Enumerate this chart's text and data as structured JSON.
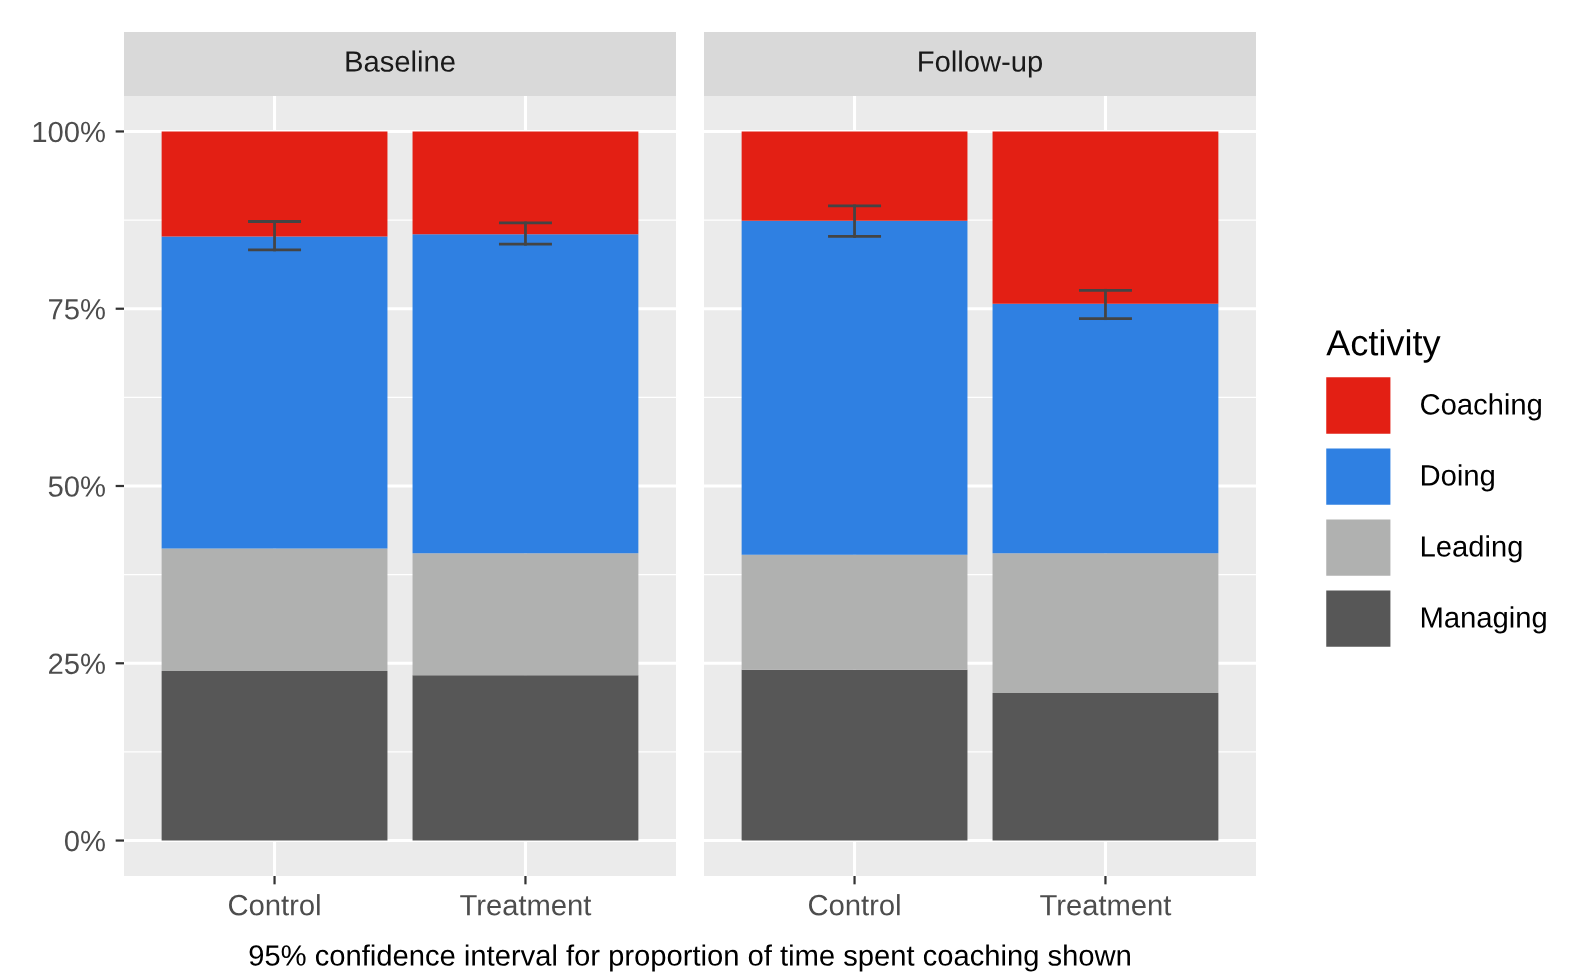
{
  "chart_data": [
    {
      "type": "bar",
      "title": "Baseline",
      "categories": [
        "Control",
        "Treatment"
      ],
      "stacked": true,
      "ylim": [
        -5,
        105
      ],
      "yticks": [
        {
          "value": 0,
          "label": "0%"
        },
        {
          "value": 12.5,
          "label": null
        },
        {
          "value": 25,
          "label": "25%"
        },
        {
          "value": 37.5,
          "label": null
        },
        {
          "value": 50,
          "label": "50%"
        },
        {
          "value": 62.5,
          "label": null
        },
        {
          "value": 75,
          "label": "75%"
        },
        {
          "value": 87.5,
          "label": null
        },
        {
          "value": 100,
          "label": "100%"
        }
      ],
      "grid": true,
      "legend": "right",
      "legend_title": "Activity",
      "annotations": [
        "95% confidence interval for proportion of time spent coaching shown"
      ],
      "series": [
        {
          "name": "Managing",
          "color": "#575757",
          "values": [
            23.9,
            23.3
          ]
        },
        {
          "name": "Leading",
          "color": "#b0b1b0",
          "values": [
            17.3,
            17.2
          ]
        },
        {
          "name": "Doing",
          "color": "#2f80e2",
          "values": [
            44.0,
            45.0
          ],
          "errors": [
            [
              83.3,
              87.3
            ],
            [
              84.1,
              87.1
            ]
          ]
        },
        {
          "name": "Coaching",
          "color": "#e31f14",
          "values": [
            14.8,
            14.5
          ]
        }
      ]
    },
    {
      "type": "bar",
      "title": "Follow-up",
      "categories": [
        "Control",
        "Treatment"
      ],
      "stacked": true,
      "ylim": [
        -5,
        105
      ],
      "yticks": [
        {
          "value": 0,
          "label": null
        },
        {
          "value": 12.5,
          "label": null
        },
        {
          "value": 25,
          "label": null
        },
        {
          "value": 37.5,
          "label": null
        },
        {
          "value": 50,
          "label": null
        },
        {
          "value": 62.5,
          "label": null
        },
        {
          "value": 75,
          "label": null
        },
        {
          "value": 87.5,
          "label": null
        },
        {
          "value": 100,
          "label": null
        }
      ],
      "grid": true,
      "tick_labels": "x",
      "series": [
        {
          "color": "#575757",
          "values": [
            24.1,
            20.8
          ]
        },
        {
          "color": "#b0b1b0",
          "values": [
            16.2,
            19.7
          ]
        },
        {
          "color": "#2f80e2",
          "values": [
            47.1,
            35.2
          ],
          "errors": [
            [
              85.2,
              89.5
            ],
            [
              73.6,
              77.6
            ]
          ]
        },
        {
          "color": "#e31f14",
          "values": [
            12.6,
            24.3
          ]
        }
      ]
    }
  ]
}
